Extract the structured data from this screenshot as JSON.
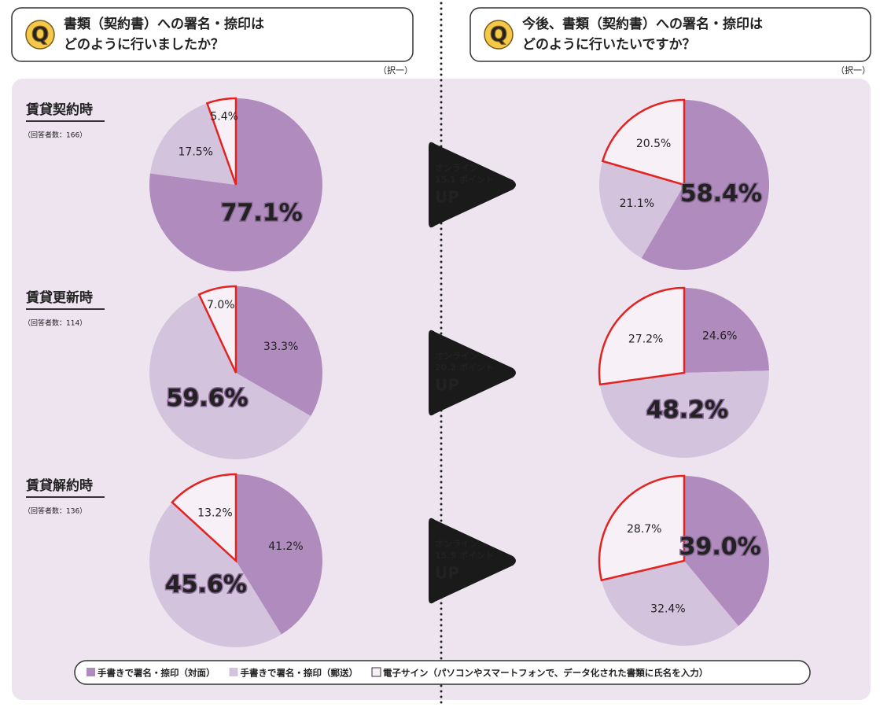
{
  "questions": [
    {
      "icon": "Q",
      "lines": [
        "書類（契約書）への署名・捺印は",
        "どのように行いましたか？"
      ],
      "note": "（択一）"
    },
    {
      "icon": "Q",
      "lines": [
        "今後、書類（契約書）への署名・捺印は",
        "どのように行いたいですか？"
      ],
      "note": "（択一）"
    }
  ],
  "rows": [
    {
      "label": "賃貸契約時",
      "respondents": "（回答者数：166）"
    },
    {
      "label": "賃貸更新時",
      "respondents": "（回答者数：114）"
    },
    {
      "label": "賃貸解約時",
      "respondents": "（回答者数：136）"
    }
  ],
  "arrows": [
    {
      "lines": [
        "オンライン",
        "15.1 ポイント",
        "UP"
      ]
    },
    {
      "lines": [
        "オンライン",
        "20.2 ポイント",
        "UP"
      ]
    },
    {
      "lines": [
        "オンライン",
        "15.5 ポイント",
        "UP"
      ]
    }
  ],
  "legend": [
    {
      "label": "手書きで署名・捺印（対面）",
      "color": "#b08bbd"
    },
    {
      "label": "手書きで署名・捺印（郵送）",
      "color": "#d4c3dc"
    },
    {
      "label": "電子サイン（パソコンやスマートフォンで、データ化された書類に氏名を入力）",
      "color": "#f7f1f7"
    }
  ],
  "chart_data": [
    {
      "type": "pie",
      "values": [
        77.1,
        17.5,
        5.4
      ],
      "value_labels": [
        "77.1%",
        "17.5%",
        "5.4%"
      ],
      "colors": [
        "#b08bbd",
        "#d4c3dc",
        "#f7f1f7"
      ],
      "highlight": 0
    },
    {
      "type": "pie",
      "values": [
        58.4,
        21.1,
        20.5
      ],
      "value_labels": [
        "58.4%",
        "21.1%",
        "20.5%"
      ],
      "colors": [
        "#b08bbd",
        "#d4c3dc",
        "#f7f1f7"
      ],
      "highlight": 0
    },
    {
      "type": "pie",
      "values": [
        33.3,
        59.6,
        7.0
      ],
      "value_labels": [
        "33.3%",
        "59.6%",
        "7.0%"
      ],
      "colors": [
        "#b08bbd",
        "#d4c3dc",
        "#f7f1f7"
      ],
      "highlight": 1
    },
    {
      "type": "pie",
      "values": [
        24.6,
        48.2,
        27.2
      ],
      "value_labels": [
        "24.6%",
        "48.2%",
        "27.2%"
      ],
      "colors": [
        "#b08bbd",
        "#d4c3dc",
        "#f7f1f7"
      ],
      "highlight": 1
    },
    {
      "type": "pie",
      "values": [
        41.2,
        45.6,
        13.2
      ],
      "value_labels": [
        "41.2%",
        "45.6%",
        "13.2%"
      ],
      "colors": [
        "#b08bbd",
        "#d4c3dc",
        "#f7f1f7"
      ],
      "highlight": 1
    },
    {
      "type": "pie",
      "values": [
        39.0,
        32.4,
        28.7
      ],
      "value_labels": [
        "39.0%",
        "32.4%",
        "28.7%"
      ],
      "colors": [
        "#b08bbd",
        "#d4c3dc",
        "#f7f1f7"
      ],
      "highlight": 0
    }
  ]
}
